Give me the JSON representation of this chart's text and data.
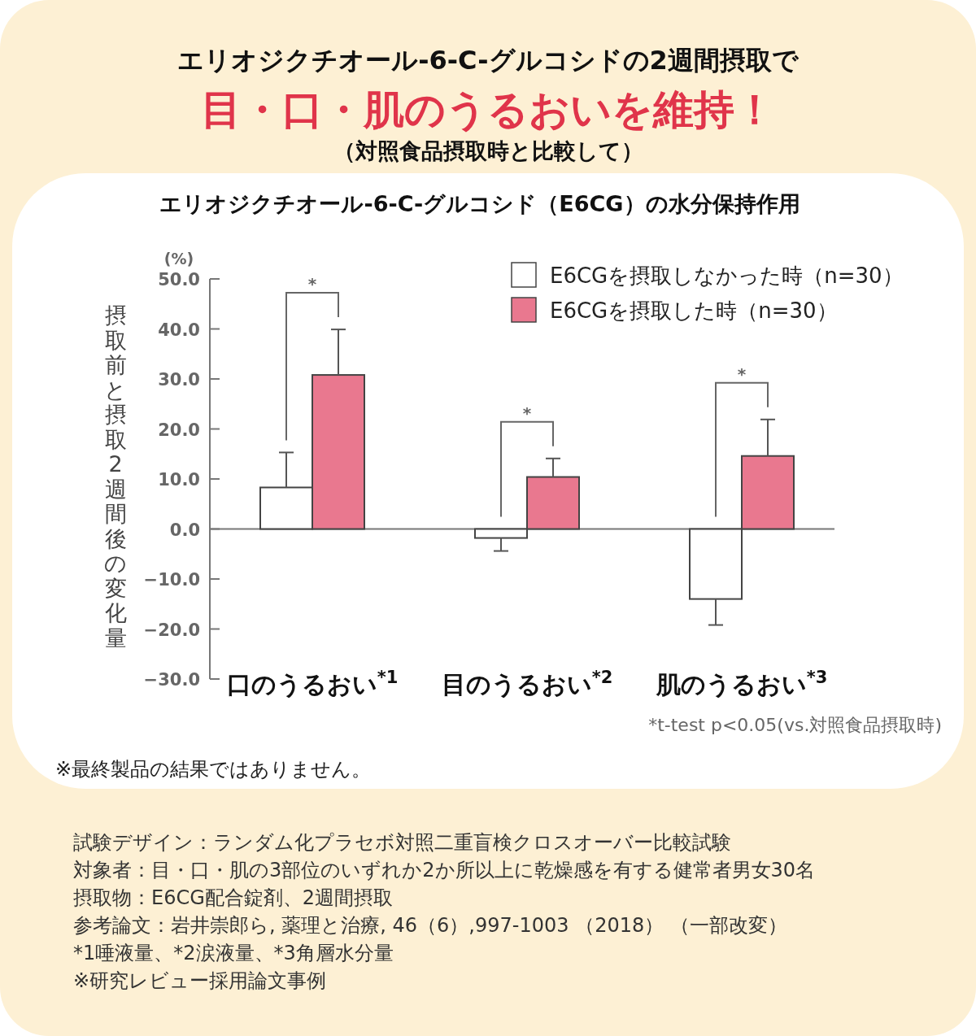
{
  "chart_data": {
    "type": "bar",
    "title": "エリオジクチオール-6-C-グルコシドの2週間摂取で",
    "subtitle": "目・口・肌のうるおいを維持！",
    "ylabel": "摂取前と摂取2週間後の変化量",
    "categories": [
      "口のうるおい$^{*1}$",
      "目のうるおい$^{*2}$",
      "肌のうるおい$^{*3}$"
    ],
    "series": [
      {
        "name": "E6CGを摂取しなかった時（n=30）",
        "color": "#ffffff",
        "values": [
          8.3,
          -1.8,
          -14.0
        ],
        "errors": [
          [
            8.3,
            15.3
          ],
          [
            -4.4,
            -1.8
          ],
          [
            -19.2,
            -14.0
          ]
        ]
      },
      {
        "name": "E6CGを摂取した時（n=30）",
        "color": "#e9788f",
        "values": [
          30.8,
          10.4,
          14.6
        ],
        "errors": [
          [
            30.8,
            39.9
          ],
          [
            10.4,
            14.1
          ],
          [
            14.6,
            21.9
          ]
        ]
      }
    ],
    "ylim": [
      -30,
      50
    ],
    "yticks": [
      {
        "value": -30,
        "label": "−30.0"
      },
      {
        "value": -20,
        "label": "−20.0"
      },
      {
        "value": -10,
        "label": "−10.0"
      },
      {
        "value": 0,
        "label": "0.0"
      },
      {
        "value": 10,
        "label": "10.0"
      },
      {
        "value": 20,
        "label": "20.0"
      },
      {
        "value": 30,
        "label": "30.0"
      },
      {
        "value": 40,
        "label": "40.0"
      },
      {
        "value": 50,
        "label": "50.0"
      }
    ],
    "legend": "top right",
    "annotations": [
      "（対照食品摂取時と比較して）",
      "エリオジクチオール-6-C-グルコシド（E6CG）の水分保持作用",
      "(%)",
      "*",
      "*",
      "*",
      "*t-test p<0.05(vs.対照食品摂取時)",
      "※最終製品の結果ではありません。",
      "試験デザイン：ランダム化プラセボ対照二重盲検クロスオーバー比較試験",
      "対象者：目・口・肌の3部位のいずれか2か所以上に乾燥感を有する健常者男女30名",
      "摂取物：E6CG配合錠剤、2週間摂取",
      "参考論文：岩井崇郎ら, 薬理と治療, 46（6）,997-1003 （2018） （一部改変）",
      "*1唾液量、*2涙液量、*3角層水分量",
      "※研究レビュー採用論文事例"
    ]
  }
}
